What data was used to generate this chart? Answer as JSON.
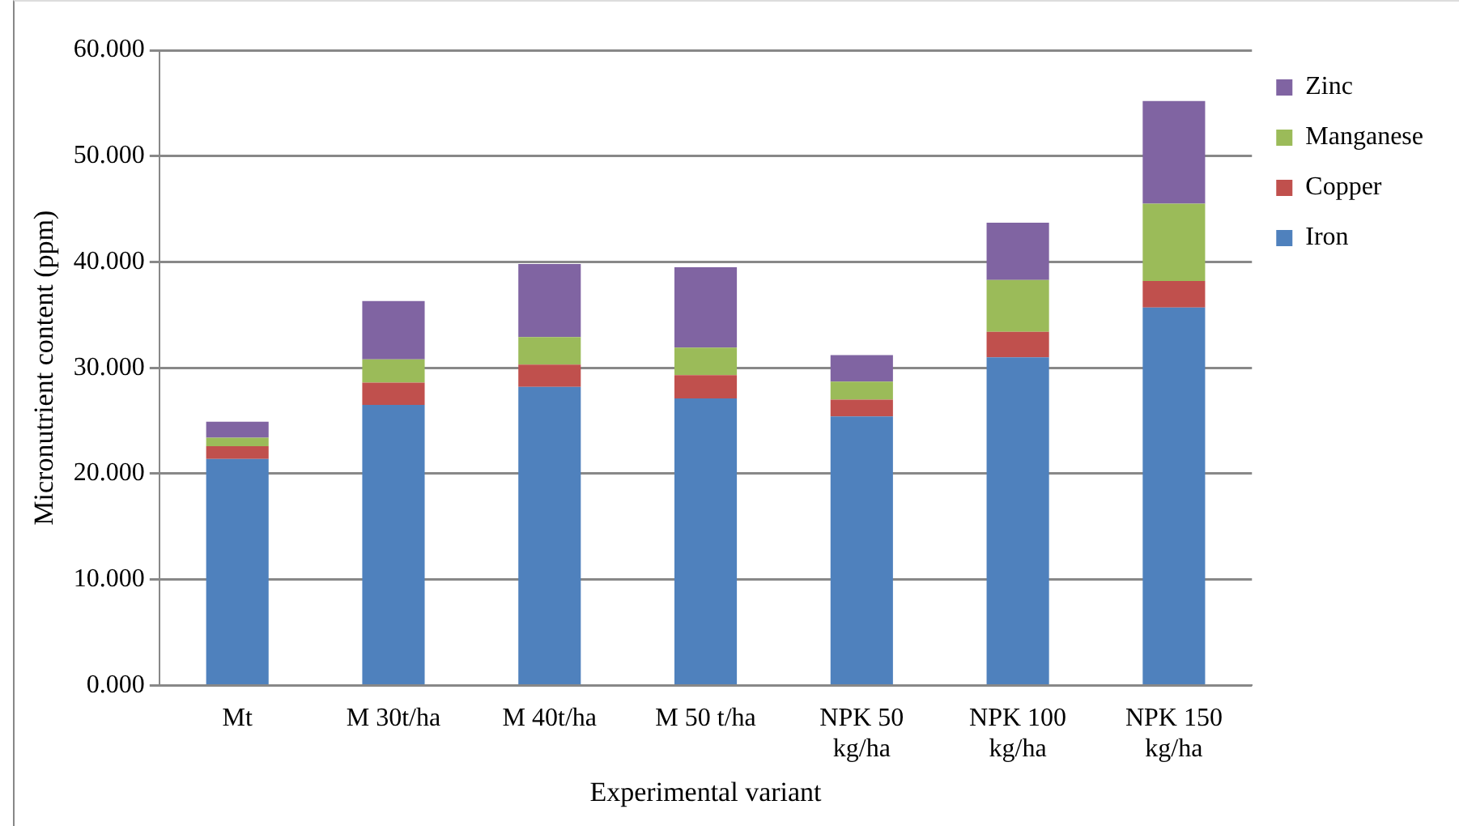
{
  "chart_data": {
    "type": "bar",
    "stacked": true,
    "xlabel": "Experimental variant",
    "ylabel": "Micronutrient content (ppm)",
    "categories": [
      "Mt",
      "M 30t/ha",
      "M 40t/ha",
      "M 50 t/ha",
      "NPK 50 kg/ha",
      "NPK 100 kg/ha",
      "NPK 150 kg/ha"
    ],
    "series": [
      {
        "name": "Iron",
        "color": "#4f81bd",
        "values": [
          21.4,
          26.5,
          28.2,
          27.1,
          25.4,
          31.0,
          35.7
        ]
      },
      {
        "name": "Copper",
        "color": "#c0504d",
        "values": [
          1.2,
          2.1,
          2.1,
          2.2,
          1.6,
          2.4,
          2.5
        ]
      },
      {
        "name": "Manganese",
        "color": "#9bbb59",
        "values": [
          0.8,
          2.2,
          2.6,
          2.6,
          1.7,
          4.9,
          7.3
        ]
      },
      {
        "name": "Zinc",
        "color": "#8064a2",
        "values": [
          1.5,
          5.5,
          6.9,
          7.6,
          2.5,
          5.4,
          9.7
        ]
      }
    ],
    "ylim": [
      0,
      60
    ],
    "yticks": [
      {
        "value": 0,
        "label": "0.000"
      },
      {
        "value": 10,
        "label": "10.000"
      },
      {
        "value": 20,
        "label": "20.000"
      },
      {
        "value": 30,
        "label": "30.000"
      },
      {
        "value": 40,
        "label": "40.000"
      },
      {
        "value": 50,
        "label": "50.000"
      },
      {
        "value": 60,
        "label": "60.000"
      }
    ],
    "grid": "y",
    "legend": "right"
  }
}
